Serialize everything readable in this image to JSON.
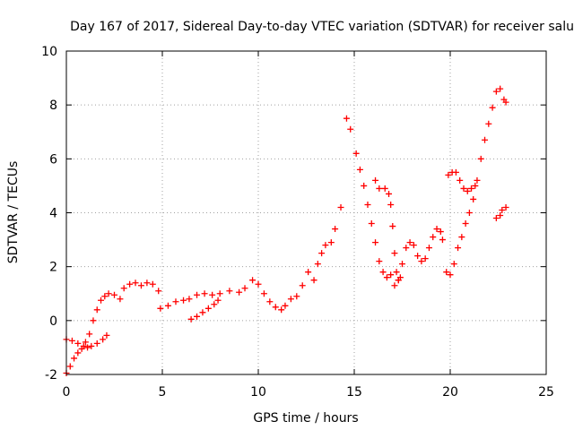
{
  "chart_data": {
    "type": "scatter",
    "title": "Day 167 of 2017, Sidereal Day-to-day VTEC variation (SDTVAR) for receiver salu",
    "xlabel": "GPS time / hours",
    "ylabel": "SDTVAR / TECUs",
    "xlim": [
      0,
      25
    ],
    "ylim": [
      -2,
      10
    ],
    "xticks": [
      "0",
      "5",
      "10",
      "15",
      "20",
      "25"
    ],
    "yticks": [
      "-2",
      "0",
      "2",
      "4",
      "6",
      "8",
      "10"
    ],
    "grid": true,
    "marker": "plus",
    "color": "#ff0000",
    "series": [
      {
        "values": [
          [
            0.0,
            -0.7
          ],
          [
            0.3,
            -0.75
          ],
          [
            0.6,
            -0.85
          ],
          [
            0.9,
            -0.95
          ],
          [
            1.1,
            -1.0
          ],
          [
            1.3,
            -0.95
          ],
          [
            1.6,
            -0.85
          ],
          [
            1.9,
            -0.7
          ],
          [
            2.1,
            -0.55
          ],
          [
            0.0,
            -1.95
          ],
          [
            0.2,
            -1.7
          ],
          [
            0.4,
            -1.4
          ],
          [
            0.6,
            -1.2
          ],
          [
            0.8,
            -1.05
          ],
          [
            1.0,
            -0.8
          ],
          [
            1.2,
            -0.5
          ],
          [
            1.4,
            0.0
          ],
          [
            1.6,
            0.4
          ],
          [
            1.8,
            0.75
          ],
          [
            2.0,
            0.9
          ],
          [
            2.2,
            1.0
          ],
          [
            2.5,
            0.95
          ],
          [
            2.8,
            0.8
          ],
          [
            3.0,
            1.2
          ],
          [
            3.3,
            1.35
          ],
          [
            3.6,
            1.4
          ],
          [
            3.9,
            1.3
          ],
          [
            4.2,
            1.4
          ],
          [
            4.5,
            1.35
          ],
          [
            4.8,
            1.1
          ],
          [
            4.9,
            0.45
          ],
          [
            5.3,
            0.55
          ],
          [
            5.7,
            0.7
          ],
          [
            6.1,
            0.75
          ],
          [
            6.4,
            0.8
          ],
          [
            6.8,
            0.95
          ],
          [
            7.2,
            1.0
          ],
          [
            7.6,
            0.95
          ],
          [
            8.0,
            1.0
          ],
          [
            8.5,
            1.1
          ],
          [
            9.0,
            1.05
          ],
          [
            9.3,
            1.2
          ],
          [
            9.7,
            1.5
          ],
          [
            10.0,
            1.35
          ],
          [
            10.3,
            1.0
          ],
          [
            10.6,
            0.7
          ],
          [
            10.9,
            0.5
          ],
          [
            11.2,
            0.4
          ],
          [
            11.4,
            0.55
          ],
          [
            11.7,
            0.8
          ],
          [
            12.0,
            0.9
          ],
          [
            12.3,
            1.3
          ],
          [
            12.6,
            1.8
          ],
          [
            12.9,
            1.5
          ],
          [
            13.1,
            2.1
          ],
          [
            13.3,
            2.5
          ],
          [
            13.5,
            2.8
          ],
          [
            13.8,
            2.9
          ],
          [
            14.0,
            3.4
          ],
          [
            14.3,
            4.2
          ],
          [
            6.5,
            0.05
          ],
          [
            6.8,
            0.15
          ],
          [
            7.1,
            0.3
          ],
          [
            7.4,
            0.45
          ],
          [
            7.7,
            0.6
          ],
          [
            7.9,
            0.75
          ],
          [
            14.6,
            7.5
          ],
          [
            14.8,
            7.1
          ],
          [
            15.1,
            6.2
          ],
          [
            15.3,
            5.6
          ],
          [
            15.5,
            5.0
          ],
          [
            15.7,
            4.3
          ],
          [
            15.9,
            3.6
          ],
          [
            16.1,
            2.9
          ],
          [
            16.3,
            2.2
          ],
          [
            16.5,
            1.8
          ],
          [
            16.7,
            1.6
          ],
          [
            16.9,
            1.7
          ],
          [
            17.1,
            1.3
          ],
          [
            17.3,
            1.5
          ],
          [
            17.5,
            2.1
          ],
          [
            17.7,
            2.7
          ],
          [
            17.9,
            2.9
          ],
          [
            18.1,
            2.8
          ],
          [
            18.3,
            2.4
          ],
          [
            18.5,
            2.2
          ],
          [
            18.7,
            2.3
          ],
          [
            18.9,
            2.7
          ],
          [
            19.1,
            3.1
          ],
          [
            19.3,
            3.4
          ],
          [
            19.5,
            3.3
          ],
          [
            19.6,
            3.0
          ],
          [
            16.1,
            5.2
          ],
          [
            16.3,
            4.9
          ],
          [
            16.6,
            4.9
          ],
          [
            16.8,
            4.7
          ],
          [
            16.9,
            4.3
          ],
          [
            17.0,
            3.5
          ],
          [
            17.1,
            2.5
          ],
          [
            17.2,
            1.8
          ],
          [
            17.3,
            1.5
          ],
          [
            17.4,
            1.6
          ],
          [
            19.8,
            1.8
          ],
          [
            20.0,
            1.7
          ],
          [
            20.2,
            2.1
          ],
          [
            20.4,
            2.7
          ],
          [
            20.6,
            3.1
          ],
          [
            20.8,
            3.6
          ],
          [
            21.0,
            4.0
          ],
          [
            21.2,
            4.5
          ],
          [
            21.4,
            5.2
          ],
          [
            21.6,
            6.0
          ],
          [
            21.8,
            6.7
          ],
          [
            22.0,
            7.3
          ],
          [
            22.2,
            7.9
          ],
          [
            22.4,
            8.5
          ],
          [
            22.6,
            8.6
          ],
          [
            22.8,
            8.2
          ],
          [
            22.9,
            8.1
          ],
          [
            19.9,
            5.4
          ],
          [
            20.1,
            5.5
          ],
          [
            20.3,
            5.5
          ],
          [
            20.5,
            5.2
          ],
          [
            20.7,
            4.9
          ],
          [
            20.9,
            4.8
          ],
          [
            21.1,
            4.9
          ],
          [
            21.3,
            5.0
          ],
          [
            22.4,
            3.8
          ],
          [
            22.6,
            3.9
          ],
          [
            22.7,
            4.1
          ],
          [
            22.9,
            4.2
          ]
        ]
      }
    ]
  }
}
